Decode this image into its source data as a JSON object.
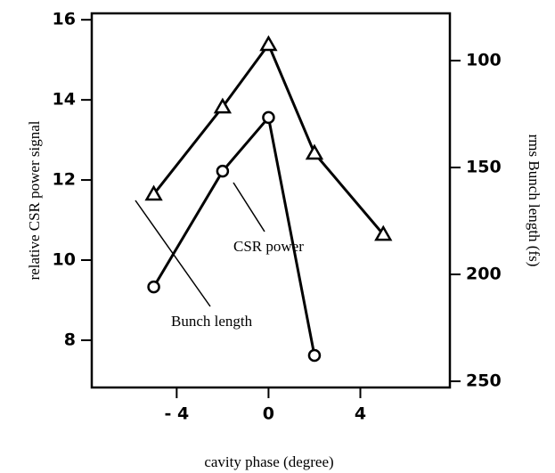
{
  "chart_data": {
    "type": "line",
    "xlabel": "cavity phase (degree)",
    "ylabel": "relative CSR power signal",
    "y2label": "rms Bunch length (fs)",
    "x": [
      -5,
      -2,
      0,
      2,
      5
    ],
    "series": [
      {
        "name": "CSR power",
        "color": "#000000",
        "marker": "circle",
        "values": [
          9.33,
          12.22,
          13.56,
          7.62,
          null
        ]
      },
      {
        "name": "Bunch length",
        "color": "#000000",
        "marker": "triangle",
        "axis": "y2",
        "values": [
          162.5,
          121.7,
          92.5,
          143.3,
          181.3
        ]
      }
    ],
    "xlim": [
      -7.7,
      7.9
    ],
    "xticks": [
      {
        "value": -4,
        "label": "- 4"
      },
      0,
      4
    ],
    "ylim": [
      6.82,
      16.16
    ],
    "yticks": [
      8,
      10,
      12,
      14,
      16
    ],
    "y2lim": [
      252.9,
      77.9
    ],
    "y2ticks": [
      100,
      150,
      200,
      250
    ]
  }
}
